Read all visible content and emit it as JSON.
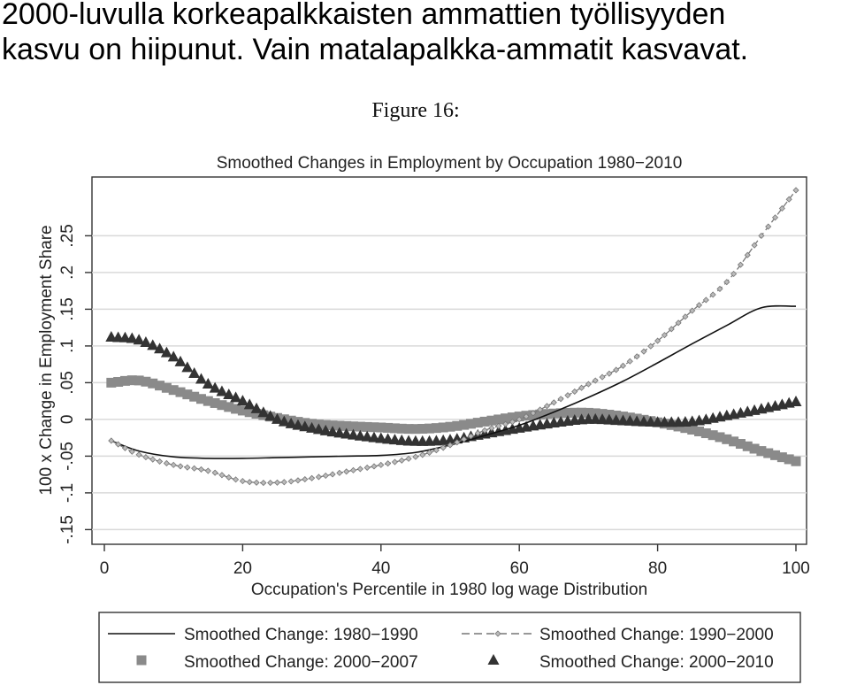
{
  "headline": {
    "line1": "2000-luvulla korkeapalkkaisten ammattien työllisyyden",
    "line2": "kasvu on hiipunut. Vain matalapalkka-ammatit kasvavat."
  },
  "figure_label": "Figure 16:",
  "chart_data": {
    "type": "line",
    "title": "Smoothed Changes in Employment by Occupation 1980−2010",
    "xlabel": "Occupation's Percentile in 1980 log wage Distribution",
    "ylabel": "100 x Change in Employment Share",
    "xlim": [
      0,
      100
    ],
    "ylim": [
      -0.17,
      0.33
    ],
    "xticks": [
      0,
      20,
      40,
      60,
      80,
      100
    ],
    "xtick_labels": [
      "0",
      "20",
      "40",
      "60",
      "80",
      "100"
    ],
    "yticks": [
      -0.15,
      -0.1,
      -0.05,
      0,
      0.05,
      0.1,
      0.15,
      0.2,
      0.25
    ],
    "ytick_labels": [
      "-.15",
      "-.1",
      "-.05",
      "0",
      ".05",
      ".1",
      ".15",
      ".2",
      ".25"
    ],
    "grid": true,
    "legend_position": "bottom",
    "x": [
      1,
      5,
      10,
      15,
      20,
      25,
      30,
      35,
      40,
      45,
      50,
      55,
      60,
      65,
      70,
      75,
      80,
      85,
      90,
      95,
      100
    ],
    "series": [
      {
        "name": "Smoothed Change: 1980−1990",
        "style": "solid-line",
        "color": "#111111",
        "values": [
          -0.029,
          -0.043,
          -0.051,
          -0.053,
          -0.053,
          -0.052,
          -0.051,
          -0.05,
          -0.049,
          -0.045,
          -0.035,
          -0.022,
          -0.008,
          0.01,
          0.03,
          0.052,
          0.077,
          0.103,
          0.128,
          0.152,
          0.154
        ]
      },
      {
        "name": "Smoothed Change: 1990−2000",
        "style": "dashed-diamond",
        "color": "#777777",
        "values": [
          -0.029,
          -0.048,
          -0.062,
          -0.07,
          -0.084,
          -0.086,
          -0.08,
          -0.071,
          -0.062,
          -0.051,
          -0.035,
          -0.015,
          0.0,
          0.023,
          0.048,
          0.073,
          0.107,
          0.148,
          0.187,
          0.25,
          0.312
        ]
      },
      {
        "name": "Smoothed Change: 2000−2007",
        "style": "square-markers",
        "color": "#8a8a8a",
        "values": [
          0.05,
          0.053,
          0.04,
          0.025,
          0.012,
          0.002,
          -0.006,
          -0.009,
          -0.011,
          -0.013,
          -0.01,
          -0.003,
          0.004,
          0.008,
          0.009,
          0.004,
          -0.004,
          -0.014,
          -0.027,
          -0.043,
          -0.057
        ]
      },
      {
        "name": "Smoothed Change: 2000−2010",
        "style": "triangle-markers",
        "color": "#333333",
        "values": [
          0.112,
          0.108,
          0.085,
          0.048,
          0.025,
          0.0,
          -0.012,
          -0.02,
          -0.026,
          -0.03,
          -0.028,
          -0.02,
          -0.012,
          -0.005,
          0.0,
          -0.002,
          -0.004,
          -0.003,
          0.005,
          0.014,
          0.024
        ]
      }
    ]
  }
}
